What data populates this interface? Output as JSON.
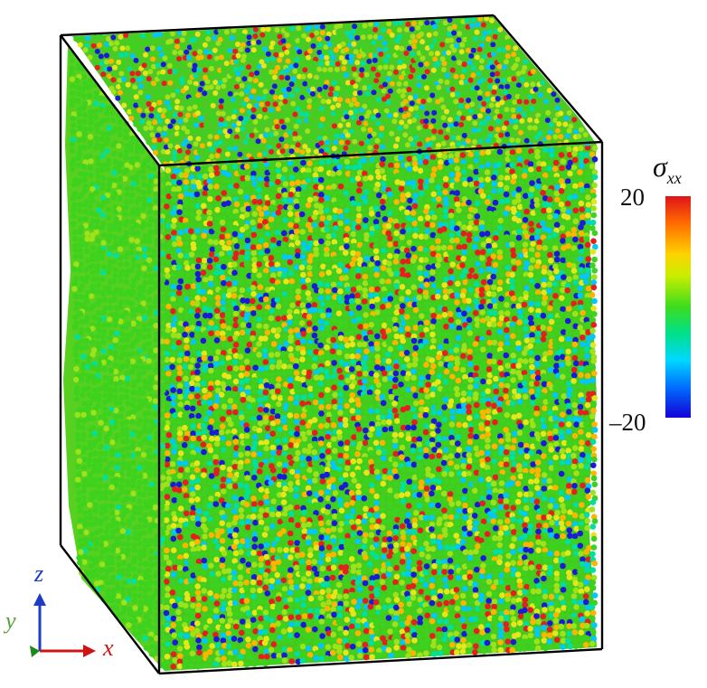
{
  "figure": {
    "description_free": true,
    "colors": {
      "box_edge": "#000000",
      "front_face_base": "#46c81e",
      "side_face_base": "#58d020",
      "top_face_base": "#52c628"
    },
    "atom_palette": [
      "#1a1ad8",
      "#00c8ff",
      "#00e0a0",
      "#3cd21e",
      "#9ee21a",
      "#e6e61a",
      "#ffb400",
      "#e61e1e"
    ]
  },
  "colorbar": {
    "title_symbol": "σ",
    "title_subscript": "xx",
    "max_label": "20",
    "min_label": "–20",
    "colors": [
      "#e0141a",
      "#ff6a00",
      "#ffd200",
      "#3cdc1e",
      "#00d8ff",
      "#1400d8"
    ]
  },
  "axes": {
    "z_label": "z",
    "y_label": "y",
    "x_label": "x",
    "z_color": "#1c3cc8",
    "y_color": "#5aa03c",
    "x_color": "#d01414"
  }
}
